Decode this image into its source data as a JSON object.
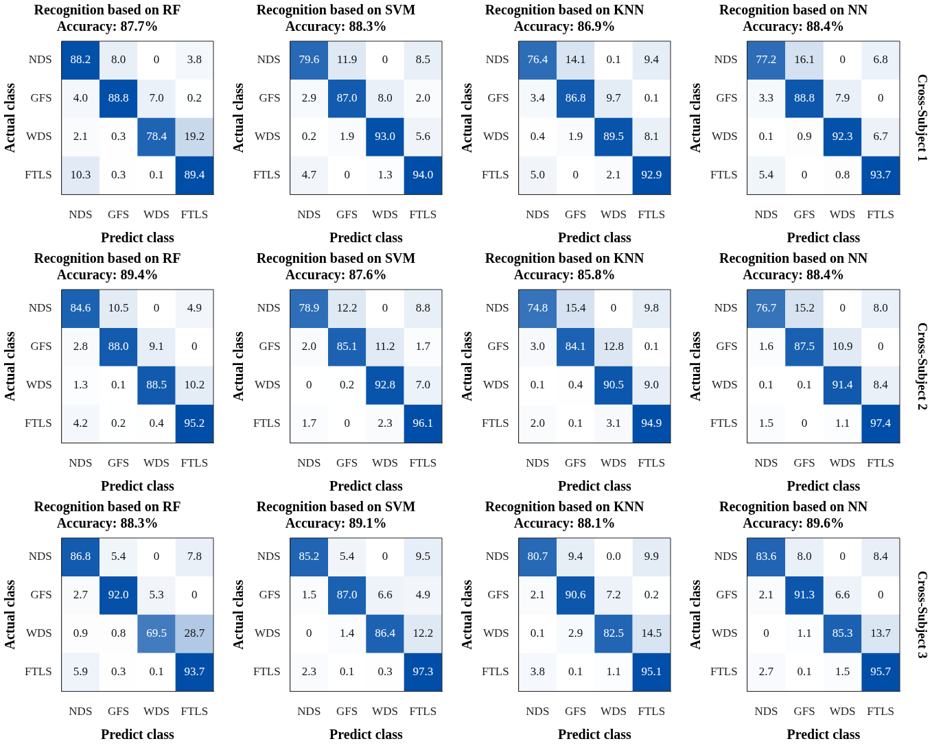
{
  "chart_data": [
    {
      "type": "heatmap",
      "title": "Recognition based on RF",
      "subtitle": "Accuracy: 87.7%",
      "xlabel": "Predict class",
      "ylabel": "Actual class",
      "categories": [
        "NDS",
        "GFS",
        "WDS",
        "FTLS"
      ],
      "y_categories": [
        "NDS",
        "GFS",
        "WDS",
        "FTLS"
      ],
      "cells": [
        [
          88.2,
          8.0,
          0,
          3.8
        ],
        [
          4.0,
          88.8,
          7.0,
          0.2
        ],
        [
          2.1,
          0.3,
          78.4,
          19.2
        ],
        [
          10.3,
          0.3,
          0.1,
          89.4
        ]
      ],
      "cell_labels": [
        [
          "88.2",
          "8.0",
          "0",
          "3.8"
        ],
        [
          "4.0",
          "88.8",
          "7.0",
          "0.2"
        ],
        [
          "2.1",
          "0.3",
          "78.4",
          "19.2"
        ],
        [
          "10.3",
          "0.3",
          "0.1",
          "89.4"
        ]
      ]
    },
    {
      "type": "heatmap",
      "title": "Recognition based on SVM",
      "subtitle": "Accuracy: 88.3%",
      "xlabel": "Predict class",
      "ylabel": "Actual class",
      "categories": [
        "NDS",
        "GFS",
        "WDS",
        "FTLS"
      ],
      "y_categories": [
        "NDS",
        "GFS",
        "WDS",
        "FTLS"
      ],
      "cells": [
        [
          79.6,
          11.9,
          0,
          8.5
        ],
        [
          2.9,
          87.0,
          8.0,
          2.0
        ],
        [
          0.2,
          1.9,
          93.0,
          5.6
        ],
        [
          4.7,
          0,
          1.3,
          94.0
        ]
      ],
      "cell_labels": [
        [
          "79.6",
          "11.9",
          "0",
          "8.5"
        ],
        [
          "2.9",
          "87.0",
          "8.0",
          "2.0"
        ],
        [
          "0.2",
          "1.9",
          "93.0",
          "5.6"
        ],
        [
          "4.7",
          "0",
          "1.3",
          "94.0"
        ]
      ]
    },
    {
      "type": "heatmap",
      "title": "Recognition based on KNN",
      "subtitle": "Accuracy: 86.9%",
      "xlabel": "Predict class",
      "ylabel": "Actual class",
      "categories": [
        "NDS",
        "GFS",
        "WDS",
        "FTLS"
      ],
      "y_categories": [
        "NDS",
        "GFS",
        "WDS",
        "FTLS"
      ],
      "cells": [
        [
          76.4,
          14.1,
          0.1,
          9.4
        ],
        [
          3.4,
          86.8,
          9.7,
          0.1
        ],
        [
          0.4,
          1.9,
          89.5,
          8.1
        ],
        [
          5.0,
          0,
          2.1,
          92.9
        ]
      ],
      "cell_labels": [
        [
          "76.4",
          "14.1",
          "0.1",
          "9.4"
        ],
        [
          "3.4",
          "86.8",
          "9.7",
          "0.1"
        ],
        [
          "0.4",
          "1.9",
          "89.5",
          "8.1"
        ],
        [
          "5.0",
          "0",
          "2.1",
          "92.9"
        ]
      ]
    },
    {
      "type": "heatmap",
      "title": "Recognition based on NN",
      "subtitle": "Accuracy: 88.4%",
      "xlabel": "Predict class",
      "ylabel": "Actual class",
      "categories": [
        "NDS",
        "GFS",
        "WDS",
        "FTLS"
      ],
      "y_categories": [
        "NDS",
        "GFS",
        "WDS",
        "FTLS"
      ],
      "cells": [
        [
          77.2,
          16.1,
          0,
          6.8
        ],
        [
          3.3,
          88.8,
          7.9,
          0
        ],
        [
          0.1,
          0.9,
          92.3,
          6.7
        ],
        [
          5.4,
          0,
          0.8,
          93.7
        ]
      ],
      "cell_labels": [
        [
          "77.2",
          "16.1",
          "0",
          "6.8"
        ],
        [
          "3.3",
          "88.8",
          "7.9",
          "0"
        ],
        [
          "0.1",
          "0.9",
          "92.3",
          "6.7"
        ],
        [
          "5.4",
          "0",
          "0.8",
          "93.7"
        ]
      ],
      "annotations": [
        "Cross-Subject 1"
      ]
    },
    {
      "type": "heatmap",
      "title": "Recognition based on RF",
      "subtitle": "Accuracy: 89.4%",
      "xlabel": "Predict class",
      "ylabel": "Actual class",
      "categories": [
        "NDS",
        "GFS",
        "WDS",
        "FTLS"
      ],
      "y_categories": [
        "NDS",
        "GFS",
        "WDS",
        "FTLS"
      ],
      "cells": [
        [
          84.6,
          10.5,
          0,
          4.9
        ],
        [
          2.8,
          88.0,
          9.1,
          0
        ],
        [
          1.3,
          0.1,
          88.5,
          10.2
        ],
        [
          4.2,
          0.2,
          0.4,
          95.2
        ]
      ],
      "cell_labels": [
        [
          "84.6",
          "10.5",
          "0",
          "4.9"
        ],
        [
          "2.8",
          "88.0",
          "9.1",
          "0"
        ],
        [
          "1.3",
          "0.1",
          "88.5",
          "10.2"
        ],
        [
          "4.2",
          "0.2",
          "0.4",
          "95.2"
        ]
      ]
    },
    {
      "type": "heatmap",
      "title": "Recognition based on SVM",
      "subtitle": "Accuracy: 87.6%",
      "xlabel": "Predict class",
      "ylabel": "Actual class",
      "categories": [
        "NDS",
        "GFS",
        "WDS",
        "FTLS"
      ],
      "y_categories": [
        "NDS",
        "GFS",
        "WDS",
        "FTLS"
      ],
      "cells": [
        [
          78.9,
          12.2,
          0,
          8.8
        ],
        [
          2.0,
          85.1,
          11.2,
          1.7
        ],
        [
          0,
          0.2,
          92.8,
          7.0
        ],
        [
          1.7,
          0,
          2.3,
          96.1
        ]
      ],
      "cell_labels": [
        [
          "78.9",
          "12.2",
          "0",
          "8.8"
        ],
        [
          "2.0",
          "85.1",
          "11.2",
          "1.7"
        ],
        [
          "0",
          "0.2",
          "92.8",
          "7.0"
        ],
        [
          "1.7",
          "0",
          "2.3",
          "96.1"
        ]
      ]
    },
    {
      "type": "heatmap",
      "title": "Recognition based on KNN",
      "subtitle": "Accuracy: 85.8%",
      "xlabel": "Predict class",
      "ylabel": "Actual class",
      "categories": [
        "NDS",
        "GFS",
        "WDS",
        "FTLS"
      ],
      "y_categories": [
        "NDS",
        "GFS",
        "WDS",
        "FTLS"
      ],
      "cells": [
        [
          74.8,
          15.4,
          0,
          9.8
        ],
        [
          3.0,
          84.1,
          12.8,
          0.1
        ],
        [
          0.1,
          0.4,
          90.5,
          9.0
        ],
        [
          2.0,
          0.1,
          3.1,
          94.9
        ]
      ],
      "cell_labels": [
        [
          "74.8",
          "15.4",
          "0",
          "9.8"
        ],
        [
          "3.0",
          "84.1",
          "12.8",
          "0.1"
        ],
        [
          "0.1",
          "0.4",
          "90.5",
          "9.0"
        ],
        [
          "2.0",
          "0.1",
          "3.1",
          "94.9"
        ]
      ]
    },
    {
      "type": "heatmap",
      "title": "Recognition based on NN",
      "subtitle": "Accuracy: 88.4%",
      "xlabel": "Predict class",
      "ylabel": "Actual class",
      "categories": [
        "NDS",
        "GFS",
        "WDS",
        "FTLS"
      ],
      "y_categories": [
        "NDS",
        "GFS",
        "WDS",
        "FTLS"
      ],
      "cells": [
        [
          76.7,
          15.2,
          0,
          8.0
        ],
        [
          1.6,
          87.5,
          10.9,
          0
        ],
        [
          0.1,
          0.1,
          91.4,
          8.4
        ],
        [
          1.5,
          0,
          1.1,
          97.4
        ]
      ],
      "cell_labels": [
        [
          "76.7",
          "15.2",
          "0",
          "8.0"
        ],
        [
          "1.6",
          "87.5",
          "10.9",
          "0"
        ],
        [
          "0.1",
          "0.1",
          "91.4",
          "8.4"
        ],
        [
          "1.5",
          "0",
          "1.1",
          "97.4"
        ]
      ],
      "annotations": [
        "Cross-Subject 2"
      ]
    },
    {
      "type": "heatmap",
      "title": "Recognition based on RF",
      "subtitle": "Accuracy: 88.3%",
      "xlabel": "Predict class",
      "ylabel": "Actual class",
      "categories": [
        "NDS",
        "GFS",
        "WDS",
        "FTLS"
      ],
      "y_categories": [
        "NDS",
        "GFS",
        "WDS",
        "FTLS"
      ],
      "cells": [
        [
          86.8,
          5.4,
          0,
          7.8
        ],
        [
          2.7,
          92.0,
          5.3,
          0
        ],
        [
          0.9,
          0.8,
          69.5,
          28.7
        ],
        [
          5.9,
          0.3,
          0.1,
          93.7
        ]
      ],
      "cell_labels": [
        [
          "86.8",
          "5.4",
          "0",
          "7.8"
        ],
        [
          "2.7",
          "92.0",
          "5.3",
          "0"
        ],
        [
          "0.9",
          "0.8",
          "69.5",
          "28.7"
        ],
        [
          "5.9",
          "0.3",
          "0.1",
          "93.7"
        ]
      ]
    },
    {
      "type": "heatmap",
      "title": "Recognition based on SVM",
      "subtitle": "Accuracy: 89.1%",
      "xlabel": "Predict class",
      "ylabel": "Actual class",
      "categories": [
        "NDS",
        "GFS",
        "WDS",
        "FTLS"
      ],
      "y_categories": [
        "NDS",
        "GFS",
        "WDS",
        "FTLS"
      ],
      "cells": [
        [
          85.2,
          5.4,
          0,
          9.5
        ],
        [
          1.5,
          87.0,
          6.6,
          4.9
        ],
        [
          0,
          1.4,
          86.4,
          12.2
        ],
        [
          2.3,
          0.1,
          0.3,
          97.3
        ]
      ],
      "cell_labels": [
        [
          "85.2",
          "5.4",
          "0",
          "9.5"
        ],
        [
          "1.5",
          "87.0",
          "6.6",
          "4.9"
        ],
        [
          "0",
          "1.4",
          "86.4",
          "12.2"
        ],
        [
          "2.3",
          "0.1",
          "0.3",
          "97.3"
        ]
      ]
    },
    {
      "type": "heatmap",
      "title": "Recognition based on KNN",
      "subtitle": "Accuracy: 88.1%",
      "xlabel": "Predict class",
      "ylabel": "Actual class",
      "categories": [
        "NDS",
        "GFS",
        "WDS",
        "FTLS"
      ],
      "y_categories": [
        "NDS",
        "GFS",
        "WDS",
        "FTLS"
      ],
      "cells": [
        [
          80.7,
          9.4,
          0.0,
          9.9
        ],
        [
          2.1,
          90.6,
          7.2,
          0.2
        ],
        [
          0.1,
          2.9,
          82.5,
          14.5
        ],
        [
          3.8,
          0.1,
          1.1,
          95.1
        ]
      ],
      "cell_labels": [
        [
          "80.7",
          "9.4",
          "0.0",
          "9.9"
        ],
        [
          "2.1",
          "90.6",
          "7.2",
          "0.2"
        ],
        [
          "0.1",
          "2.9",
          "82.5",
          "14.5"
        ],
        [
          "3.8",
          "0.1",
          "1.1",
          "95.1"
        ]
      ]
    },
    {
      "type": "heatmap",
      "title": "Recognition based on NN",
      "subtitle": "Accuracy: 89.6%",
      "xlabel": "Predict class",
      "ylabel": "Actual class",
      "categories": [
        "NDS",
        "GFS",
        "WDS",
        "FTLS"
      ],
      "y_categories": [
        "NDS",
        "GFS",
        "WDS",
        "FTLS"
      ],
      "cells": [
        [
          83.6,
          8.0,
          0,
          8.4
        ],
        [
          2.1,
          91.3,
          6.6,
          0
        ],
        [
          0,
          1.1,
          85.3,
          13.7
        ],
        [
          2.7,
          0.1,
          1.5,
          95.7
        ]
      ],
      "cell_labels": [
        [
          "83.6",
          "8.0",
          "0",
          "8.4"
        ],
        [
          "2.1",
          "91.3",
          "6.6",
          "0"
        ],
        [
          "0",
          "1.1",
          "85.3",
          "13.7"
        ],
        [
          "2.7",
          "0.1",
          "1.5",
          "95.7"
        ]
      ],
      "annotations": [
        "Cross-Subject 3"
      ]
    }
  ]
}
